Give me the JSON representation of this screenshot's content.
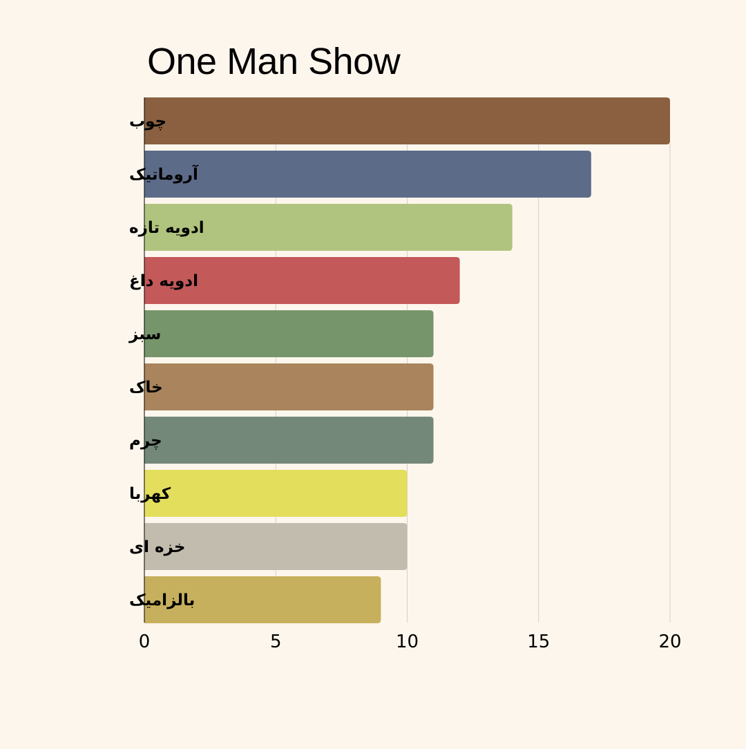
{
  "chart_data": {
    "type": "bar",
    "orientation": "horizontal",
    "title": "One Man Show",
    "xlabel": "",
    "ylabel": "",
    "xlim": [
      0,
      20
    ],
    "xticks": [
      0,
      5,
      10,
      15,
      20
    ],
    "grid": true,
    "legend": "none",
    "categories": [
      "چوب",
      "آروماتیک",
      "ادویه تازه",
      "ادویه داغ",
      "سبز",
      "خاک",
      "چرم",
      "کهربا",
      "خزه ای",
      "بالزامیک"
    ],
    "values": [
      20,
      17,
      14,
      12,
      11,
      11,
      11,
      10,
      10,
      9
    ],
    "colors": [
      "#8a6041",
      "#5c6b88",
      "#b1c47f",
      "#c35959",
      "#76956b",
      "#aa845c",
      "#74887a",
      "#e4de5d",
      "#c2bcae",
      "#c7b05d"
    ]
  },
  "style": {
    "background": "#fdf6ed",
    "grid_color": "#d3cfc8",
    "text_color": "#000000"
  }
}
